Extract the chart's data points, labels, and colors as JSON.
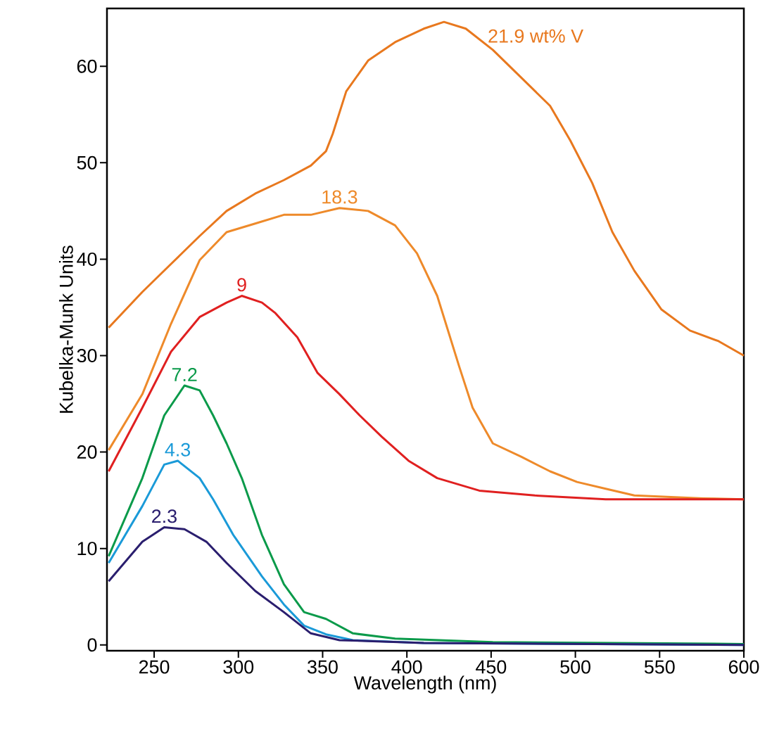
{
  "chart_data": {
    "type": "line",
    "xlabel": "Wavelength (nm)",
    "ylabel": "Kubelka-Munk Units",
    "xlim": [
      222,
      600
    ],
    "ylim": [
      -0.6,
      66
    ],
    "xticks": [
      250,
      300,
      350,
      400,
      450,
      500,
      550,
      600
    ],
    "yticks": [
      0,
      10,
      20,
      30,
      40,
      50,
      60
    ],
    "grid": false,
    "legend": false,
    "marker": "none",
    "line_style": "solid",
    "series": [
      {
        "name": "21.9 wt% V",
        "color": "#e8781e",
        "x": [
          223,
          243,
          260,
          277,
          293,
          310,
          327,
          343,
          352,
          356,
          364,
          377,
          393,
          410,
          422,
          435,
          451,
          468,
          485,
          497,
          510,
          522,
          535,
          551,
          568,
          585,
          600
        ],
        "values": [
          32.9,
          36.6,
          39.5,
          42.4,
          45.0,
          46.8,
          48.2,
          49.7,
          51.2,
          53.0,
          57.4,
          60.6,
          62.5,
          63.9,
          64.6,
          63.9,
          61.7,
          58.8,
          55.9,
          52.3,
          47.9,
          42.8,
          38.8,
          34.8,
          32.6,
          31.5,
          30.0
        ]
      },
      {
        "name": "18.3",
        "color": "#ee8a2a",
        "x": [
          223,
          243,
          260,
          277,
          293,
          310,
          327,
          343,
          360,
          377,
          393,
          406,
          418,
          431,
          439,
          451,
          468,
          485,
          501,
          518,
          535,
          576,
          600
        ],
        "values": [
          20.2,
          26.0,
          33.3,
          39.9,
          42.8,
          43.7,
          44.6,
          44.6,
          45.3,
          45.0,
          43.5,
          40.6,
          36.2,
          28.9,
          24.6,
          20.9,
          19.5,
          18.0,
          16.9,
          16.2,
          15.5,
          15.2,
          15.1
        ]
      },
      {
        "name": "9",
        "color": "#e02020",
        "x": [
          223,
          243,
          260,
          277,
          293,
          302,
          314,
          322,
          335,
          347,
          360,
          372,
          385,
          401,
          418,
          443,
          476,
          518,
          600
        ],
        "values": [
          18.0,
          24.6,
          30.4,
          34.0,
          35.5,
          36.2,
          35.5,
          34.4,
          31.9,
          28.2,
          26.0,
          23.8,
          21.6,
          19.1,
          17.3,
          16.0,
          15.5,
          15.1,
          15.1
        ]
      },
      {
        "name": "7.2",
        "color": "#0a9a4a",
        "x": [
          223,
          243,
          256,
          268,
          277,
          285,
          293,
          302,
          314,
          327,
          339,
          352,
          368,
          393,
          451,
          600
        ],
        "values": [
          9.2,
          17.3,
          23.8,
          26.9,
          26.4,
          23.8,
          20.9,
          17.3,
          11.4,
          6.3,
          3.4,
          2.7,
          1.2,
          0.66,
          0.3,
          0.1
        ]
      },
      {
        "name": "4.3",
        "color": "#1a9ad8",
        "x": [
          223,
          243,
          256,
          264,
          277,
          285,
          297,
          314,
          327,
          339,
          352,
          368,
          410,
          600
        ],
        "values": [
          8.5,
          14.4,
          18.7,
          19.1,
          17.3,
          15.1,
          11.4,
          7.1,
          4.2,
          2.0,
          1.1,
          0.5,
          0.2,
          0.0
        ]
      },
      {
        "name": "2.3",
        "color": "#2a1e6e",
        "x": [
          223,
          243,
          256,
          268,
          281,
          293,
          310,
          327,
          343,
          360,
          410,
          600
        ],
        "values": [
          6.6,
          10.7,
          12.2,
          12.0,
          10.7,
          8.5,
          5.6,
          3.4,
          1.2,
          0.5,
          0.2,
          0.0
        ]
      }
    ]
  }
}
